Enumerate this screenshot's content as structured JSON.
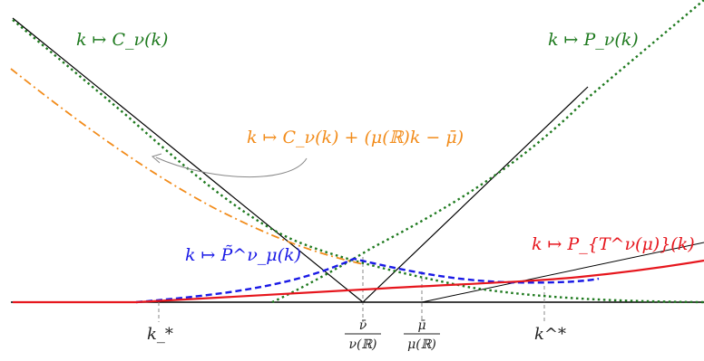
{
  "labels": {
    "call": "k ↦ C_ν(k)",
    "put": "k ↦ P_ν(k)",
    "shifted_call": "k ↦ C_ν(k) + (μ(ℝ)k − μ̄)",
    "p_tilde": "k ↦ P̃^ν_μ(k)",
    "p_t": "k ↦ P_{T^ν(μ)}(k)"
  },
  "ticks": {
    "k_low": "k_*",
    "nu_frac_num": "ν̄",
    "nu_frac_den": "ν(ℝ)",
    "mu_frac_num": "μ̄",
    "mu_frac_den": "μ(ℝ)",
    "k_high": "k^*"
  },
  "colors": {
    "green": "#1f7a1f",
    "orange": "#f28c1b",
    "blue": "#1a1ae6",
    "red": "#e6161d",
    "black": "#000000",
    "gray": "#888888"
  }
}
